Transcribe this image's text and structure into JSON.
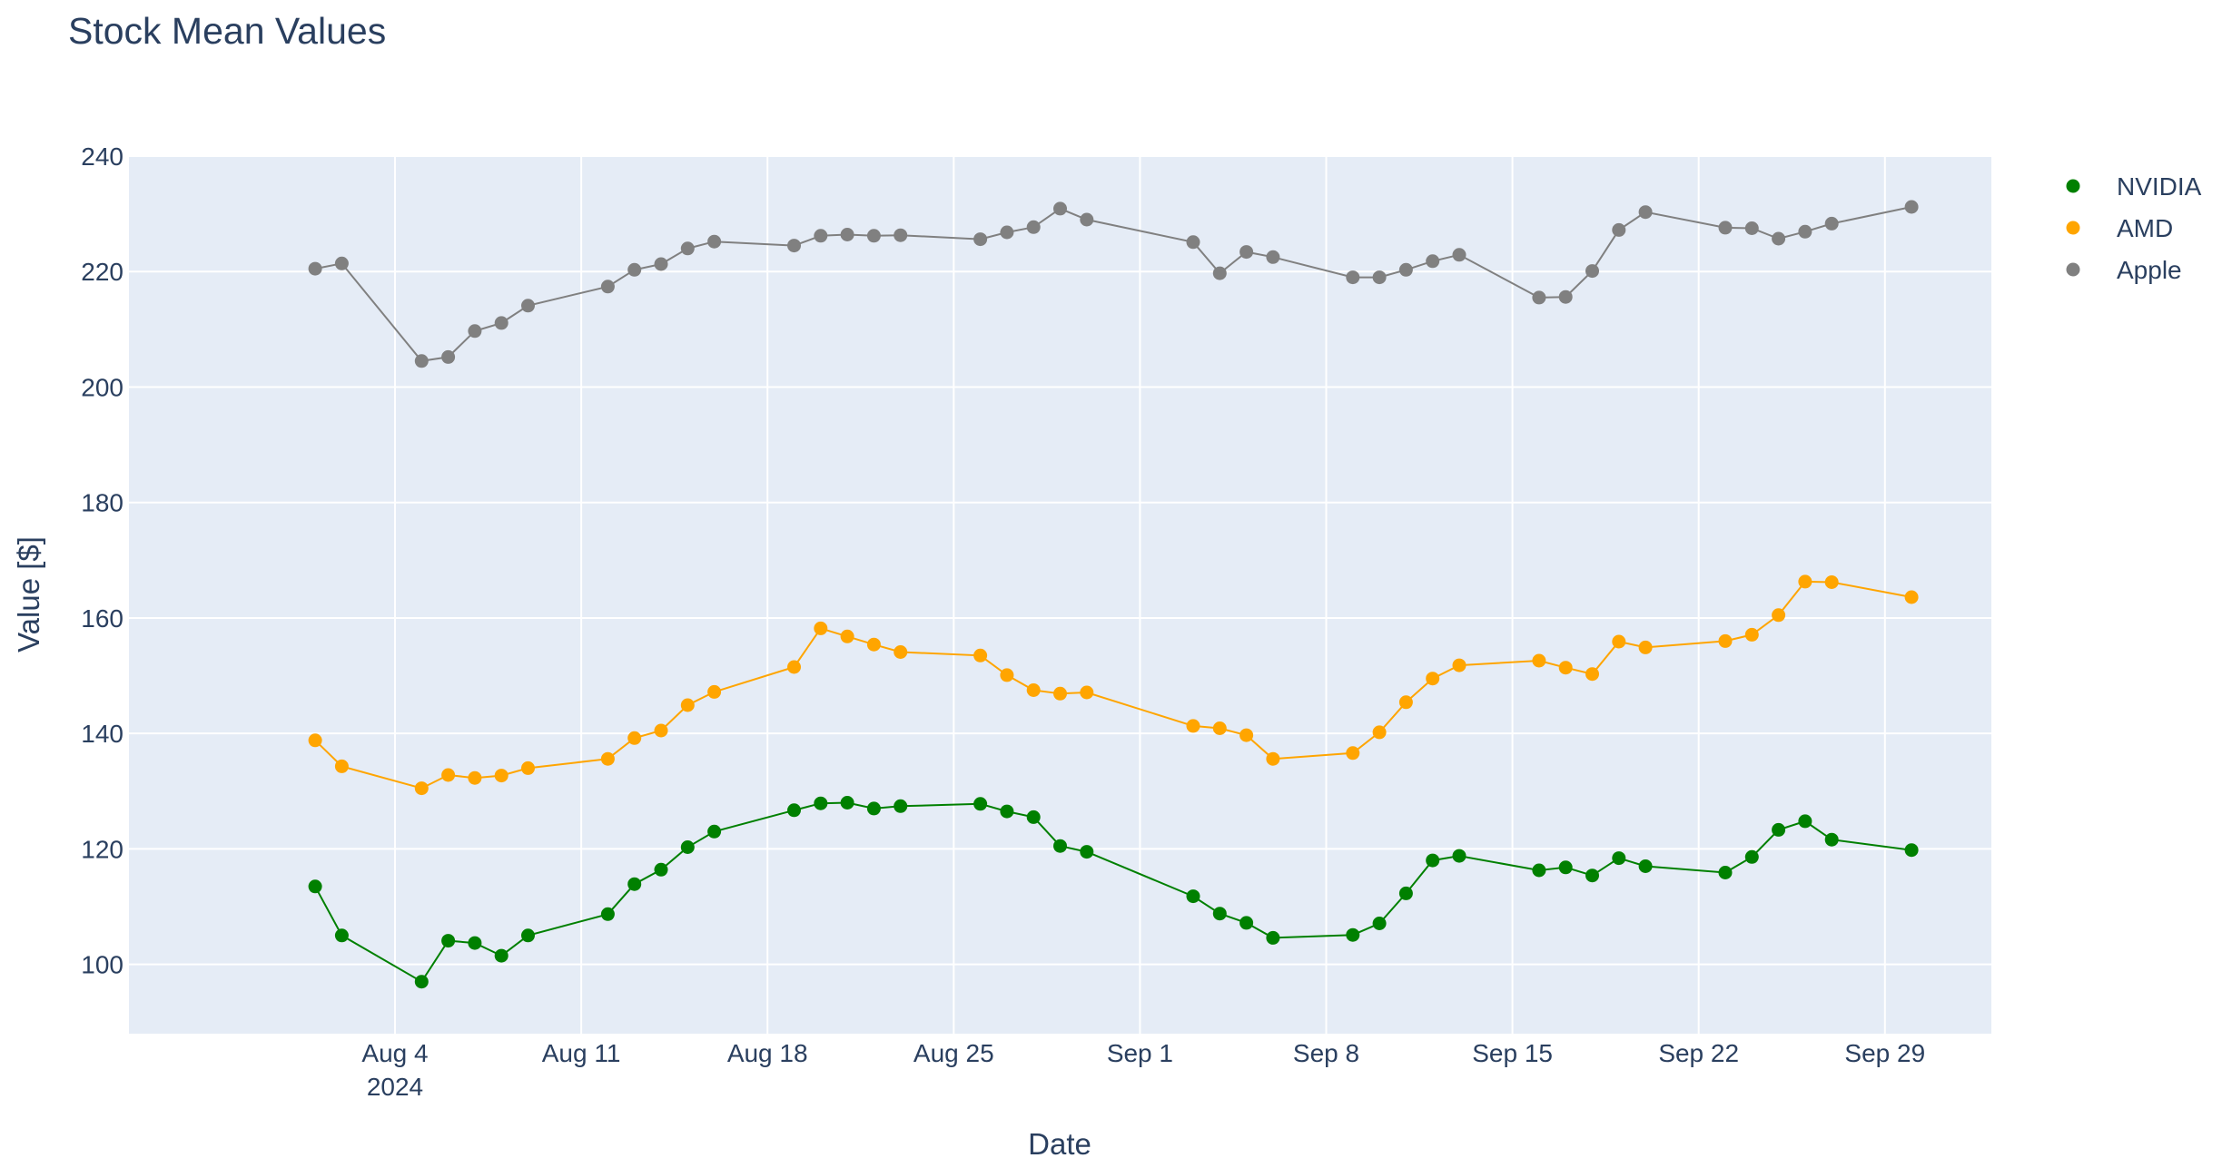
{
  "chart_data": {
    "type": "line",
    "title": "Stock Mean Values",
    "xlabel": "Date",
    "ylabel": "Value [$]",
    "ylim": [
      88,
      240
    ],
    "xlim": [
      "2024-07-25",
      "2024-10-03"
    ],
    "y_ticks": [
      100,
      120,
      140,
      160,
      180,
      200,
      220,
      240
    ],
    "x_ticks": [
      {
        "date": "2024-08-04",
        "label": "Aug 4",
        "sublabel": "2024"
      },
      {
        "date": "2024-08-11",
        "label": "Aug 11"
      },
      {
        "date": "2024-08-18",
        "label": "Aug 18"
      },
      {
        "date": "2024-08-25",
        "label": "Aug 25"
      },
      {
        "date": "2024-09-01",
        "label": "Sep 1"
      },
      {
        "date": "2024-09-08",
        "label": "Sep 8"
      },
      {
        "date": "2024-09-15",
        "label": "Sep 15"
      },
      {
        "date": "2024-09-22",
        "label": "Sep 22"
      },
      {
        "date": "2024-09-29",
        "label": "Sep 29"
      }
    ],
    "grid": true,
    "legend_position": "top-right, outside plot",
    "x": [
      "2024-08-01",
      "2024-08-02",
      "2024-08-05",
      "2024-08-06",
      "2024-08-07",
      "2024-08-08",
      "2024-08-09",
      "2024-08-12",
      "2024-08-13",
      "2024-08-14",
      "2024-08-15",
      "2024-08-16",
      "2024-08-19",
      "2024-08-20",
      "2024-08-21",
      "2024-08-22",
      "2024-08-23",
      "2024-08-26",
      "2024-08-27",
      "2024-08-28",
      "2024-08-29",
      "2024-08-30",
      "2024-09-03",
      "2024-09-04",
      "2024-09-05",
      "2024-09-06",
      "2024-09-09",
      "2024-09-10",
      "2024-09-11",
      "2024-09-12",
      "2024-09-13",
      "2024-09-16",
      "2024-09-17",
      "2024-09-18",
      "2024-09-19",
      "2024-09-20",
      "2024-09-23",
      "2024-09-24",
      "2024-09-25",
      "2024-09-26",
      "2024-09-27",
      "2024-09-30"
    ],
    "series": [
      {
        "name": "NVIDIA",
        "color": "#008000",
        "values": [
          113.5,
          105,
          97,
          104.1,
          103.7,
          101.5,
          105,
          108.7,
          113.9,
          116.4,
          120.3,
          123,
          126.7,
          127.9,
          128,
          127,
          127.4,
          127.8,
          126.5,
          125.5,
          120.5,
          119.5,
          111.8,
          108.8,
          107.2,
          104.6,
          105.1,
          107.1,
          112.3,
          118,
          118.8,
          116.3,
          116.8,
          115.4,
          118.4,
          117,
          115.9,
          118.6,
          123.3,
          124.8,
          121.6,
          119.8
        ]
      },
      {
        "name": "AMD",
        "color": "#FFA500",
        "values": [
          138.8,
          134.3,
          130.5,
          132.8,
          132.3,
          132.7,
          134,
          135.6,
          139.2,
          140.5,
          144.9,
          147.2,
          151.5,
          158.2,
          156.8,
          155.4,
          154.1,
          153.5,
          150.1,
          147.5,
          146.9,
          147.1,
          141.3,
          140.9,
          139.7,
          135.6,
          136.6,
          140.2,
          145.4,
          149.5,
          151.8,
          152.6,
          151.4,
          150.3,
          155.9,
          154.9,
          156,
          157.1,
          160.5,
          166.3,
          166.2,
          163.6
        ]
      },
      {
        "name": "Apple",
        "color": "#808080",
        "values": [
          220.5,
          221.4,
          204.5,
          205.2,
          209.7,
          211.1,
          214.1,
          217.4,
          220.3,
          221.3,
          224,
          225.2,
          224.5,
          226.2,
          226.4,
          226.2,
          226.3,
          225.6,
          226.8,
          227.7,
          230.9,
          229,
          225.1,
          219.7,
          223.4,
          222.5,
          219,
          219,
          220.3,
          221.8,
          222.9,
          215.5,
          215.6,
          220.1,
          227.2,
          230.3,
          227.6,
          227.5,
          225.7,
          226.9,
          228.3,
          231.2
        ]
      }
    ]
  }
}
